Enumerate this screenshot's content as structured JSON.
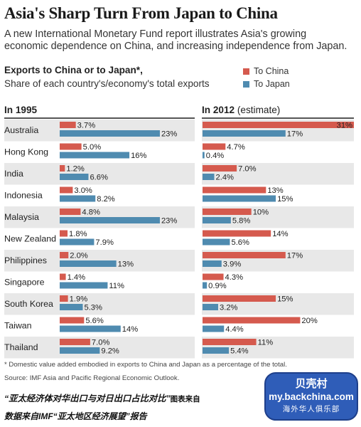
{
  "colors": {
    "china": "#d55a4e",
    "japan": "#4f8bb0",
    "row_alt": "#e8e8e8"
  },
  "text": {
    "title": "Asia's Sharp Turn From Japan to China",
    "subtitle": "A new International Monetary Fund report illustrates Asia's growing economic dependence on China, and increasing independence from Japan.",
    "legend_heading": "Exports to China or to Japan*,",
    "legend_subheading": "Share of each country's/economy's total exports",
    "legend_china": "To China",
    "legend_japan": "To Japan",
    "panel1_year": "In 1995",
    "panel2_year": "In 2012",
    "panel2_note": "(estimate)",
    "footnote": "* Domestic value added embodied in exports to China and Japan as a percentage of the total.",
    "source": "Source: IMF Asia and Pacific Regional Economic Outlook.",
    "caption_line1": "“亚太经济体对华出口与对日出口占比对比”",
    "caption_line1_tail": "图表来自",
    "caption_line2": "数据来自IMF“亚太地区经济展望”报告",
    "watermark_line1": "贝壳村",
    "watermark_line2": "my.backchina.com",
    "watermark_line3": "海外华人俱乐部"
  },
  "chart_data": [
    {
      "type": "bar",
      "orientation": "horizontal",
      "title": "In 1995",
      "categories": [
        "Australia",
        "Hong Kong",
        "India",
        "Indonesia",
        "Malaysia",
        "New Zealand",
        "Philippines",
        "Singapore",
        "South Korea",
        "Taiwan",
        "Thailand"
      ],
      "series": [
        {
          "name": "To China",
          "values": [
            3.7,
            5.0,
            1.2,
            3.0,
            4.8,
            1.8,
            2.0,
            1.4,
            1.9,
            5.6,
            7.0
          ]
        },
        {
          "name": "To Japan",
          "values": [
            23,
            16,
            6.6,
            8.2,
            23,
            7.9,
            13,
            11,
            5.3,
            14,
            9.2
          ]
        }
      ],
      "labels": {
        "To China": [
          "3.7%",
          "5.0%",
          "1.2%",
          "3.0%",
          "4.8%",
          "1.8%",
          "2.0%",
          "1.4%",
          "1.9%",
          "5.6%",
          "7.0%"
        ],
        "To Japan": [
          "23%",
          "16%",
          "6.6%",
          "8.2%",
          "23%",
          "7.9%",
          "13%",
          "11%",
          "5.3%",
          "14%",
          "9.2%"
        ]
      },
      "unit": "%",
      "xlim": [
        0,
        31
      ],
      "legend": "top-right"
    },
    {
      "type": "bar",
      "orientation": "horizontal",
      "title": "In 2012 (estimate)",
      "categories": [
        "Australia",
        "Hong Kong",
        "India",
        "Indonesia",
        "Malaysia",
        "New Zealand",
        "Philippines",
        "Singapore",
        "South Korea",
        "Taiwan",
        "Thailand"
      ],
      "series": [
        {
          "name": "To China",
          "values": [
            31,
            4.7,
            7.0,
            13,
            10,
            14,
            17,
            4.3,
            15,
            20,
            11
          ]
        },
        {
          "name": "To Japan",
          "values": [
            17,
            0.4,
            2.4,
            15,
            5.8,
            5.6,
            3.9,
            0.9,
            3.2,
            4.4,
            5.4
          ]
        }
      ],
      "labels": {
        "To China": [
          "31%",
          "4.7%",
          "7.0%",
          "13%",
          "10%",
          "14%",
          "17%",
          "4.3%",
          "15%",
          "20%",
          "11%"
        ],
        "To Japan": [
          "17%",
          "0.4%",
          "2.4%",
          "15%",
          "5.8%",
          "5.6%",
          "3.9%",
          "0.9%",
          "3.2%",
          "4.4%",
          "5.4%"
        ]
      },
      "unit": "%",
      "xlim": [
        0,
        31
      ],
      "legend": "top-right"
    }
  ]
}
